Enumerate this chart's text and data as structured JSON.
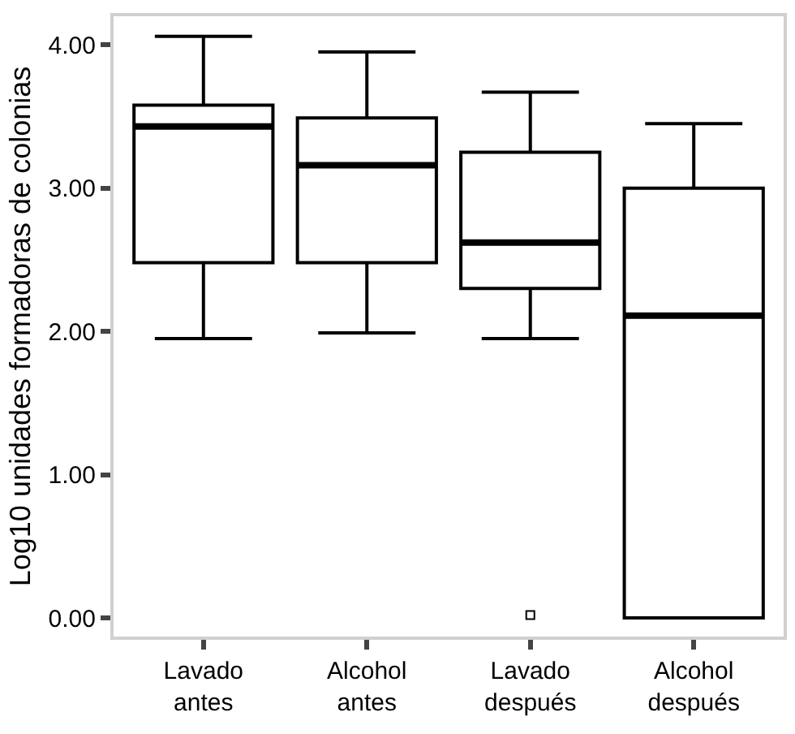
{
  "chart_data": {
    "type": "box",
    "ylabel": "Log10 unidades formadoras de colonias",
    "categories": [
      "Lavado\nantes",
      "Alcohol\nantes",
      "Lavado\ndespués",
      "Alcohol\ndespués"
    ],
    "ylim": [
      -0.13,
      4.2
    ],
    "yticks": [
      {
        "value": 0,
        "label": "0.00"
      },
      {
        "value": 1,
        "label": "1.00"
      },
      {
        "value": 2,
        "label": "2.00"
      },
      {
        "value": 3,
        "label": "3.00"
      },
      {
        "value": 4,
        "label": "4.00"
      }
    ],
    "color": "#000000",
    "boxes": [
      {
        "low": 1.95,
        "q1": 2.48,
        "median": 3.43,
        "q3": 3.58,
        "high": 4.06
      },
      {
        "low": 1.99,
        "q1": 2.48,
        "median": 3.16,
        "q3": 3.49,
        "high": 3.95
      },
      {
        "low": 1.95,
        "q1": 2.3,
        "median": 2.62,
        "q3": 3.25,
        "high": 3.67,
        "outliers": [
          0.02
        ]
      },
      {
        "low": 0,
        "q1": 0,
        "median": 2.11,
        "q3": 3.0,
        "high": 3.45
      }
    ]
  }
}
